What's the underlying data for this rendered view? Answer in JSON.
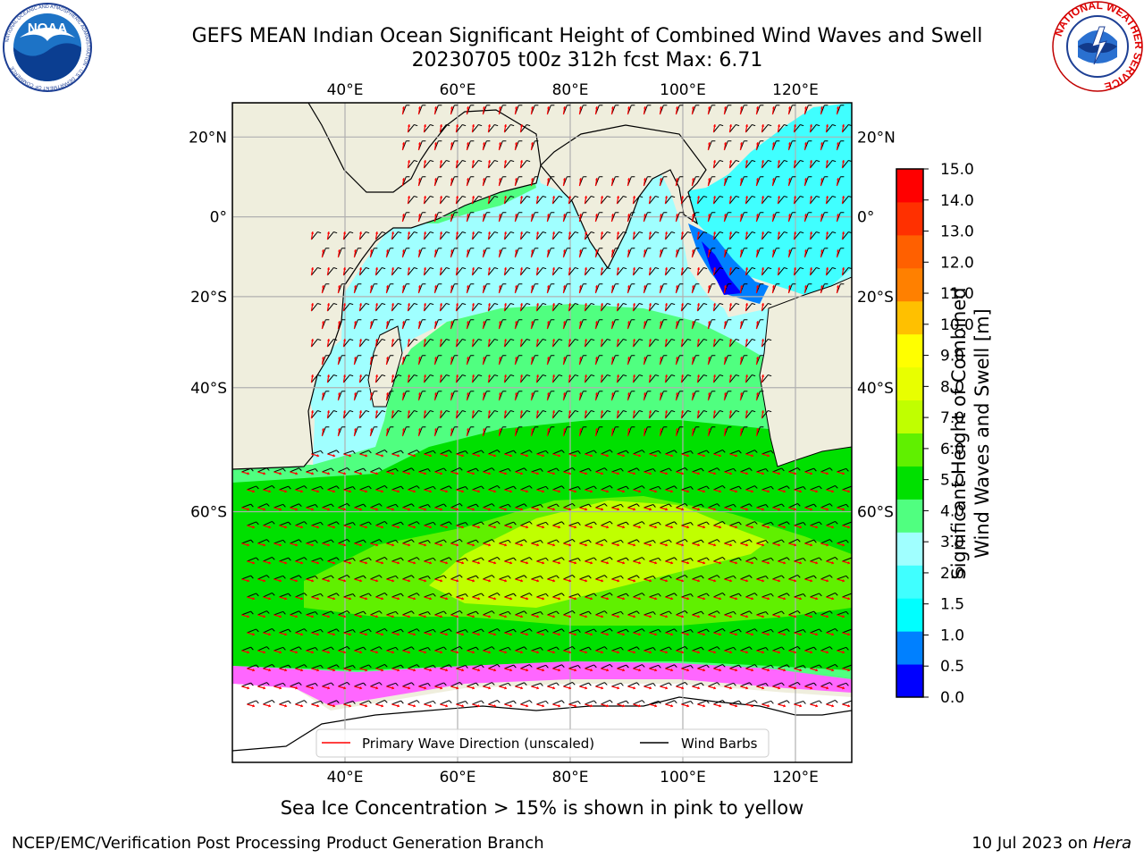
{
  "title_line1": "GEFS MEAN Indian Ocean Significant Height of Combined Wind Waves and Swell",
  "title_line2": "20230705 t00z 312h fcst   Max: 6.71",
  "map": {
    "lon_ticks": [
      "40°E",
      "60°E",
      "80°E",
      "100°E",
      "120°E"
    ],
    "lat_ticks": [
      "20°N",
      "0°",
      "20°S",
      "40°S",
      "60°S"
    ],
    "lon_values": [
      40,
      60,
      80,
      100,
      120
    ],
    "lat_values": [
      20,
      0,
      -20,
      -40,
      -60
    ],
    "lon_range": [
      20,
      130
    ],
    "lat_range": [
      -80,
      28
    ],
    "legend": {
      "primary_wave": "Primary Wave Direction (unscaled)",
      "wind_barbs": "Wind Barbs",
      "primary_wave_color": "#ff0000",
      "wind_barbs_color": "#000000"
    },
    "max_value": 6.71
  },
  "colorbar": {
    "label_line1": "Significant Height of Combined",
    "label_line2": "Wind Waves and Swell [m]",
    "ticks": [
      "15.0",
      "14.0",
      "13.0",
      "12.0",
      "11.0",
      "10.0",
      "9.0",
      "8.0",
      "7.0",
      "6.0",
      "5.0",
      "4.0",
      "3.0",
      "2.0",
      "1.5",
      "1.0",
      "0.5",
      "0.0"
    ],
    "colors_bottom_to_top": [
      "#0000ff",
      "#0080ff",
      "#00ffff",
      "#40ffff",
      "#a0ffff",
      "#50ff80",
      "#00e000",
      "#60f000",
      "#c0ff00",
      "#e8ff00",
      "#ffff00",
      "#ffc000",
      "#ff8000",
      "#ff6000",
      "#ff3000",
      "#ff0000"
    ]
  },
  "sub_note": "Sea Ice Concentration > 15% is shown in pink to yellow",
  "footer_left": "NCEP/EMC/Verification Post Processing Product Generation Branch",
  "footer_right_prefix": "10 Jul 2023 on ",
  "footer_right_host": "Hera",
  "logos": {
    "noaa_text": "NOAA",
    "noaa_ring_text": "NATIONAL OCEANIC AND ATMOSPHERIC ADMINISTRATION · U.S. DEPARTMENT OF COMMERCE",
    "nws_ring_text": "NATIONAL WEATHER SERVICE"
  }
}
